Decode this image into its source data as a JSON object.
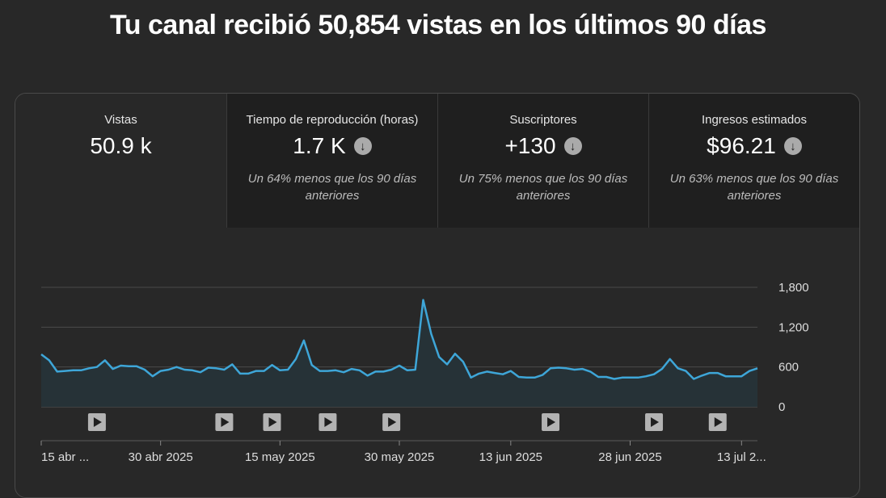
{
  "headline": "Tu canal recibió 50,854 vistas en los últimos 90 días",
  "metrics": [
    {
      "label": "Vistas",
      "value": "50.9 k",
      "compare": "",
      "icon": ""
    },
    {
      "label": "Tiempo de reproducción (horas)",
      "value": "1.7 K",
      "compare": "Un 64% menos que los 90 días anteriores",
      "icon": "arrow-down-circle-icon"
    },
    {
      "label": "Suscriptores",
      "value": "+130",
      "compare": "Un 75% menos que los 90 días anteriores",
      "icon": "arrow-down-circle-icon"
    },
    {
      "label": "Ingresos estimados",
      "value": "$96.21",
      "compare": "Un 63% menos que los 90 días anteriores",
      "icon": "arrow-down-circle-icon"
    }
  ],
  "colors": {
    "line": "#3ea6d8",
    "area": "#263237",
    "grid": "#4a4a4a",
    "background": "#282828"
  },
  "chart_data": {
    "type": "area",
    "title": "",
    "xlabel": "",
    "ylabel": "",
    "ylim": [
      0,
      1800
    ],
    "y_ticks": [
      "1,800",
      "1,200",
      "600",
      "0"
    ],
    "y_tick_values": [
      1800,
      1200,
      600,
      0
    ],
    "x_tick_labels": [
      "15 abr ...",
      "30 abr 2025",
      "15 may 2025",
      "30 may 2025",
      "13 jun 2025",
      "28 jun 2025",
      "13 jul 2..."
    ],
    "x_tick_days": [
      0,
      15,
      30,
      45,
      59,
      74,
      88
    ],
    "series": [
      {
        "values": [
          790,
          700,
          530,
          540,
          550,
          550,
          580,
          600,
          700,
          570,
          620,
          610,
          610,
          560,
          460,
          540,
          560,
          600,
          560,
          550,
          520,
          590,
          580,
          560,
          640,
          500,
          500,
          540,
          540,
          630,
          550,
          560,
          720,
          1000,
          630,
          540,
          540,
          550,
          520,
          570,
          550,
          470,
          530,
          530,
          560,
          620,
          550,
          560,
          1610,
          1100,
          750,
          640,
          800,
          680,
          440,
          500,
          530,
          510,
          490,
          540,
          450,
          440,
          440,
          480,
          580,
          590,
          580,
          560,
          570,
          530,
          450,
          450,
          420,
          440,
          440,
          440,
          460,
          490,
          570,
          720,
          580,
          540,
          420,
          470,
          510,
          510,
          460,
          460,
          460,
          540,
          580
        ]
      }
    ],
    "video_markers_day": [
      7,
      23,
      29,
      36,
      44,
      64,
      77,
      85
    ]
  }
}
